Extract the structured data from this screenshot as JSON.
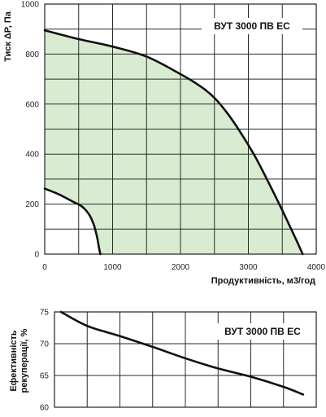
{
  "chart_data": [
    {
      "type": "line",
      "title": "",
      "annotation": "ВУТ 3000 ПВ ЕС",
      "xlabel": "Продуктивність, м3/год",
      "ylabel": "Тиск ΔP, Па",
      "xlim": [
        0,
        4000
      ],
      "ylim": [
        0,
        1000
      ],
      "xticks": [
        0,
        1000,
        2000,
        3000,
        4000
      ],
      "yticks": [
        0,
        200,
        400,
        600,
        800,
        1000
      ],
      "grid": true,
      "fill_color": "#d9ecd2",
      "series": [
        {
          "role": "max-curve",
          "x": [
            0,
            500,
            1000,
            1500,
            2000,
            2300,
            2500,
            2700,
            2900,
            3100,
            3300,
            3500,
            3700,
            3800
          ],
          "y": [
            895,
            860,
            830,
            790,
            720,
            670,
            625,
            560,
            480,
            390,
            285,
            175,
            60,
            0
          ]
        },
        {
          "role": "min-curve",
          "x": [
            0,
            200,
            400,
            550,
            650,
            720,
            770,
            800,
            820
          ],
          "y": [
            262,
            240,
            212,
            190,
            160,
            120,
            70,
            25,
            0
          ]
        }
      ]
    },
    {
      "type": "line",
      "title": "",
      "annotation": "ВУТ 3000 ПВ ЕС",
      "xlabel": "",
      "ylabel": "Ефективність рекуперації, %",
      "xlim": [
        0,
        4000
      ],
      "ylim": [
        60,
        75
      ],
      "yticks": [
        60,
        65,
        70,
        75
      ],
      "grid": true,
      "series": [
        {
          "x": [
            100,
            500,
            1000,
            1500,
            2000,
            2500,
            3000,
            3500,
            3800
          ],
          "y": [
            75,
            72.8,
            71.2,
            69.5,
            67.7,
            66.1,
            64.8,
            63.2,
            62.0
          ]
        }
      ]
    }
  ]
}
